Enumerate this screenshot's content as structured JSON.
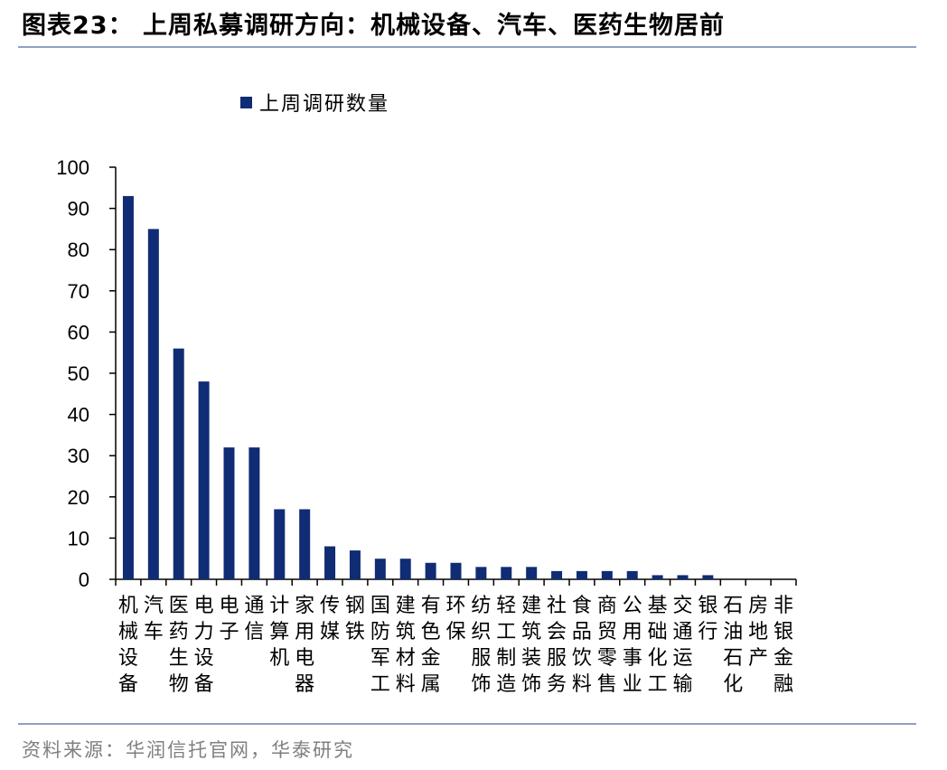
{
  "header": {
    "title": "图表23：  上周私募调研方向：机械设备、汽车、医药生物居前"
  },
  "footer": {
    "source": "资料来源：华润信托官网，华泰研究"
  },
  "chart_data": {
    "type": "bar",
    "categories": [
      "机械设备",
      "汽车",
      "医药生物",
      "电力设备",
      "电子",
      "通信",
      "计算机",
      "家用电器",
      "传媒",
      "钢铁",
      "国防军工",
      "建筑材料",
      "有色金属",
      "环保",
      "纺织服饰",
      "轻工制造",
      "建筑装饰",
      "社会服务",
      "食品饮料",
      "商贸零售",
      "公用事业",
      "基础化工",
      "交通运输",
      "银行",
      "石油石化",
      "房地产",
      "非银金融"
    ],
    "series": [
      {
        "name": "上周调研数量",
        "color": "#0f2c74",
        "values": [
          93,
          85,
          56,
          48,
          32,
          32,
          17,
          17,
          8,
          7,
          5,
          5,
          4,
          4,
          3,
          3,
          3,
          2,
          2,
          2,
          2,
          1,
          1,
          1,
          0,
          0,
          0
        ]
      }
    ],
    "ylim": [
      0,
      100
    ],
    "yticks": [
      0,
      10,
      20,
      30,
      40,
      50,
      60,
      70,
      80,
      90,
      100
    ],
    "legend_position": "top-left",
    "grid": false
  }
}
